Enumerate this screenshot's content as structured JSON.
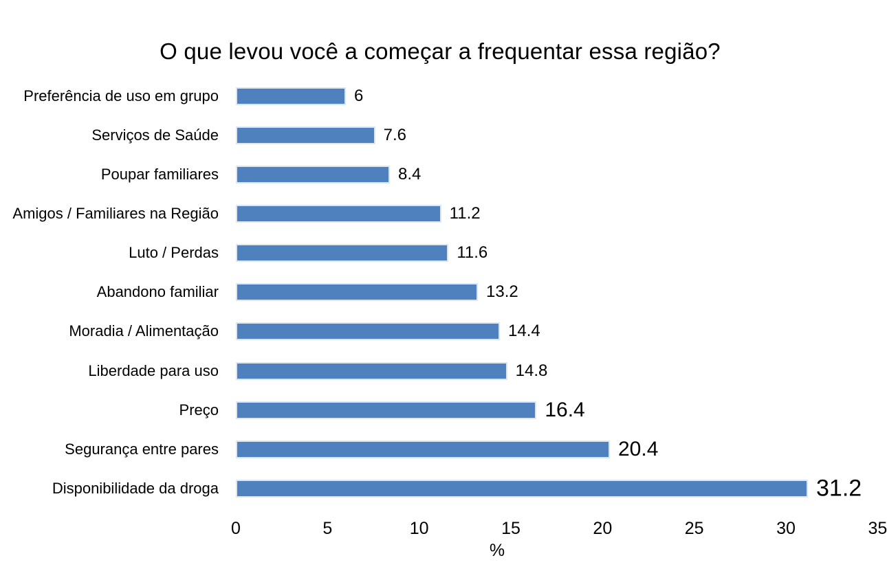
{
  "chart_data": {
    "type": "bar",
    "orientation": "horizontal",
    "title": "O que levou você a começar a frequentar essa região?",
    "xlabel": "%",
    "xlim": [
      0,
      35
    ],
    "x_ticks": [
      0,
      5,
      10,
      15,
      20,
      25,
      30,
      35
    ],
    "x_tick_labels": [
      "0",
      "5",
      "10",
      "15",
      "20",
      "25",
      "30",
      "35"
    ],
    "grid": false,
    "legend": false,
    "bar_color": "#4e81bd",
    "bar_border_color": "#dae6f3",
    "text_color": "#000000",
    "categories": [
      "Preferência de uso em grupo",
      "Serviços de Saúde",
      "Poupar familiares",
      "Amigos / Familiares na Região",
      "Luto / Perdas",
      "Abandono familiar",
      "Moradia / Alimentação",
      "Liberdade para uso",
      "Preço",
      "Segurança entre pares",
      "Disponibilidade da droga"
    ],
    "values": [
      6,
      7.6,
      8.4,
      11.2,
      11.6,
      13.2,
      14.4,
      14.8,
      16.4,
      20.4,
      31.2
    ],
    "value_labels": [
      "6",
      "7.6",
      "8.4",
      "11.2",
      "11.6",
      "13.2",
      "14.4",
      "14.8",
      "16.4",
      "20.4",
      "31.2"
    ],
    "value_label_emphasis": [
      "normal",
      "normal",
      "normal",
      "normal",
      "normal",
      "normal",
      "normal",
      "normal",
      "large",
      "large",
      "xlarge"
    ]
  }
}
